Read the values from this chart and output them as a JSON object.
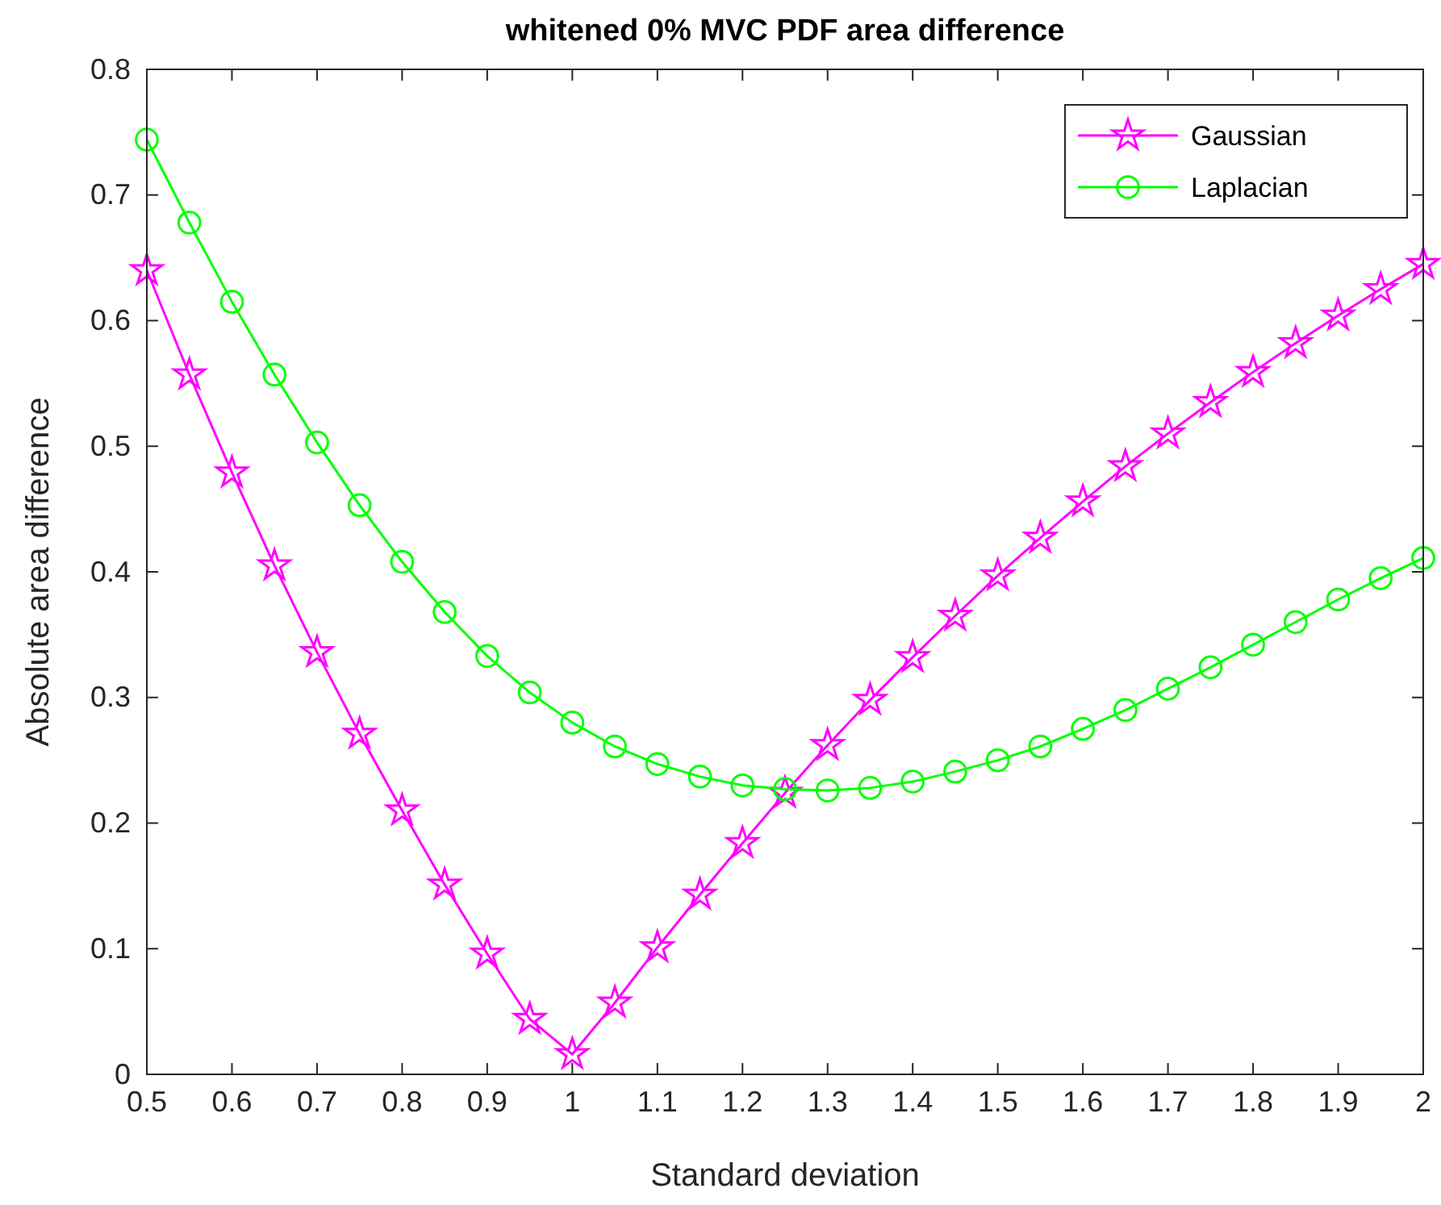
{
  "chart_data": {
    "type": "line",
    "title": "whitened 0% MVC PDF area difference",
    "xlabel": "Standard deviation",
    "ylabel": "Absolute area difference",
    "x": [
      0.5,
      0.55,
      0.6,
      0.65,
      0.7,
      0.75,
      0.8,
      0.85,
      0.9,
      0.95,
      1,
      1.05,
      1.1,
      1.15,
      1.2,
      1.25,
      1.3,
      1.35,
      1.4,
      1.45,
      1.5,
      1.55,
      1.6,
      1.65,
      1.7,
      1.75,
      1.8,
      1.85,
      1.9,
      1.95,
      2
    ],
    "series": [
      {
        "name": "Gaussian",
        "color": "#ff00ff",
        "marker": "star",
        "values": [
          0.64,
          0.557,
          0.479,
          0.405,
          0.336,
          0.271,
          0.21,
          0.151,
          0.096,
          0.044,
          0.016,
          0.057,
          0.101,
          0.143,
          0.184,
          0.224,
          0.262,
          0.298,
          0.332,
          0.365,
          0.397,
          0.427,
          0.456,
          0.484,
          0.51,
          0.535,
          0.559,
          0.582,
          0.604,
          0.625,
          0.645
        ]
      },
      {
        "name": "Laplacian",
        "color": "#00ff00",
        "marker": "circle",
        "values": [
          0.744,
          0.678,
          0.615,
          0.557,
          0.503,
          0.453,
          0.408,
          0.368,
          0.333,
          0.304,
          0.28,
          0.261,
          0.247,
          0.237,
          0.23,
          0.227,
          0.226,
          0.228,
          0.233,
          0.241,
          0.25,
          0.261,
          0.275,
          0.29,
          0.307,
          0.324,
          0.342,
          0.36,
          0.378,
          0.395,
          0.411
        ]
      }
    ],
    "xlim": [
      0.5,
      2
    ],
    "xticks": [
      0.5,
      0.6,
      0.7,
      0.8,
      0.9,
      1,
      1.1,
      1.2,
      1.3,
      1.4,
      1.5,
      1.6,
      1.7,
      1.8,
      1.9,
      2
    ],
    "ylim": [
      0,
      0.8
    ],
    "yticks": [
      0,
      0.1,
      0.2,
      0.3,
      0.4,
      0.5,
      0.6,
      0.7,
      0.8
    ],
    "grid": false,
    "legend": "top right",
    "line_style": "solid"
  }
}
